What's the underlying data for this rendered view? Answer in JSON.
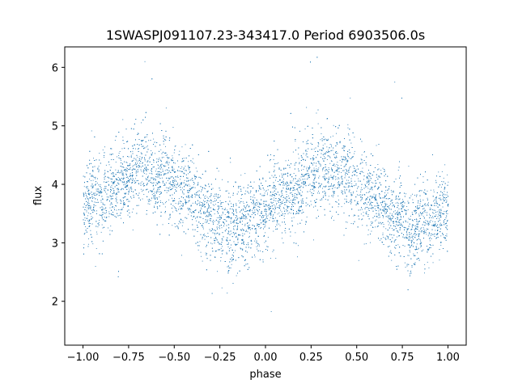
{
  "chart_data": {
    "type": "scatter",
    "title": "1SWASPJ091107.23-343417.0 Period 6903506.0s",
    "xlabel": "phase",
    "ylabel": "flux",
    "xlim": [
      -1.1,
      1.1
    ],
    "ylim": [
      1.25,
      6.35
    ],
    "xticks": [
      -1.0,
      -0.75,
      -0.5,
      -0.25,
      0.0,
      0.25,
      0.5,
      0.75,
      1.0
    ],
    "xtick_labels": [
      "−1.00",
      "−0.75",
      "−0.50",
      "−0.25",
      "0.00",
      "0.25",
      "0.50",
      "0.75",
      "1.00"
    ],
    "yticks": [
      2,
      3,
      4,
      5,
      6
    ],
    "ytick_labels": [
      "2",
      "3",
      "4",
      "5",
      "6"
    ],
    "grid": false,
    "legend": "none",
    "marker_color": "#1f77b4",
    "series": [
      {
        "points_x_range": [
          -1.0,
          1.0
        ],
        "profile_phase": [
          -1.0,
          -0.95,
          -0.9,
          -0.85,
          -0.8,
          -0.75,
          -0.7,
          -0.65,
          -0.6,
          -0.55,
          -0.5,
          -0.45,
          -0.4,
          -0.35,
          -0.3,
          -0.25,
          -0.2,
          -0.15,
          -0.1,
          -0.05,
          0.0,
          0.05,
          0.1,
          0.15,
          0.2,
          0.25,
          0.3,
          0.35,
          0.4,
          0.45,
          0.5,
          0.55,
          0.6,
          0.65,
          0.7,
          0.75,
          0.8,
          0.85,
          0.9,
          0.95,
          1.0
        ],
        "profile_flux": [
          3.6,
          3.8,
          3.7,
          3.9,
          4.0,
          4.2,
          4.3,
          4.3,
          4.1,
          4.2,
          4.0,
          3.9,
          3.8,
          3.6,
          3.4,
          3.4,
          3.2,
          3.3,
          3.3,
          3.5,
          3.6,
          3.8,
          3.7,
          3.9,
          4.0,
          4.2,
          4.3,
          4.3,
          4.1,
          4.2,
          4.0,
          3.9,
          3.8,
          3.6,
          3.4,
          3.4,
          3.2,
          3.3,
          3.3,
          3.5,
          3.6
        ],
        "scatter_spread": 0.35
      }
    ]
  }
}
